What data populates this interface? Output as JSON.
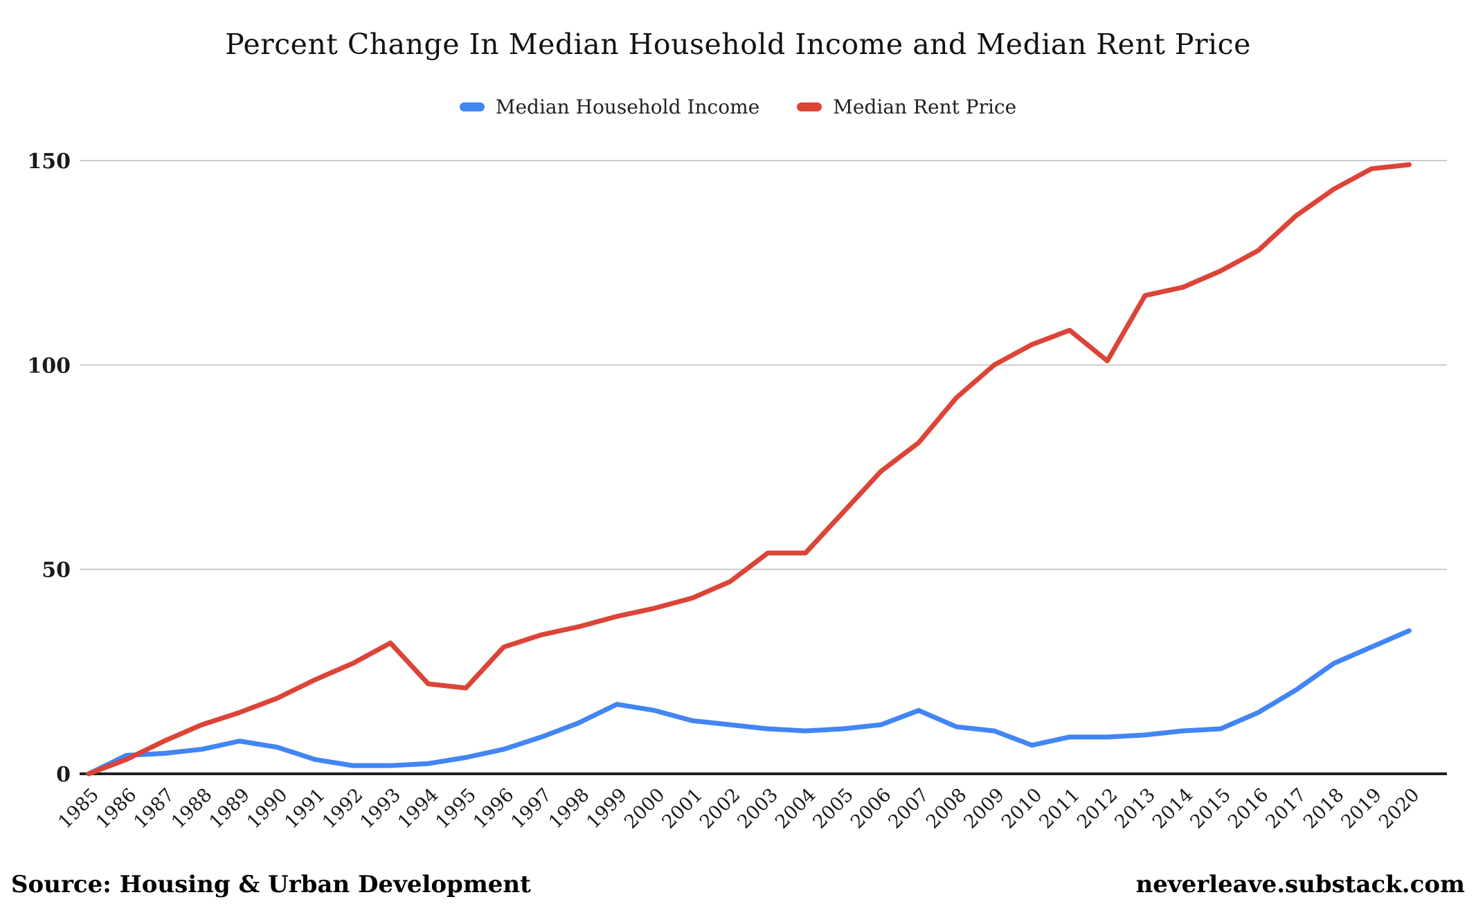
{
  "title": "Percent Change In Median Household Income and Median Rent Price",
  "legend": [
    {
      "label": "Median Household Income",
      "color": "#4285F4"
    },
    {
      "label": "Median Rent Price",
      "color": "#DC4437"
    }
  ],
  "footer": {
    "source": "Source: Housing & Urban Development",
    "site": "neverleave.substack.com"
  },
  "colors": {
    "income_line": "#4285F4",
    "rent_line": "#DC4437",
    "gridline": "#cccccc",
    "axis_baseline": "#212121",
    "tick_text": "#1a1a1a"
  },
  "chart_data": {
    "type": "line",
    "title": "Percent Change In Median Household Income and Median Rent Price",
    "xlabel": "",
    "ylabel": "",
    "x": [
      1985,
      1986,
      1987,
      1988,
      1989,
      1990,
      1991,
      1992,
      1993,
      1994,
      1995,
      1996,
      1997,
      1998,
      1999,
      2000,
      2001,
      2002,
      2003,
      2004,
      2005,
      2006,
      2007,
      2008,
      2009,
      2010,
      2011,
      2012,
      2013,
      2014,
      2015,
      2016,
      2017,
      2018,
      2019,
      2020
    ],
    "series": [
      {
        "name": "Median Household Income",
        "color": "#4285F4",
        "values": [
          0,
          4.5,
          5,
          6,
          8,
          6.5,
          3.5,
          2,
          2,
          2.5,
          4,
          6,
          9,
          12.5,
          17,
          15.5,
          13,
          12,
          11,
          10.5,
          11,
          12,
          15.5,
          11.5,
          10.5,
          7,
          9,
          9,
          9.5,
          10.5,
          11,
          15,
          20.5,
          27,
          31,
          35
        ]
      },
      {
        "name": "Median Rent Price",
        "color": "#DC4437",
        "values": [
          0,
          3.5,
          8,
          12,
          15,
          18.5,
          23,
          27,
          32,
          22,
          21,
          31,
          34,
          36,
          38.5,
          40.5,
          43,
          47,
          54,
          54,
          64,
          74,
          81,
          92,
          100,
          105,
          108.5,
          101,
          117,
          119,
          123,
          128,
          136.5,
          143,
          148,
          149
        ]
      }
    ],
    "ylim": [
      0,
      150
    ],
    "yticks": [
      0,
      50,
      100,
      150
    ],
    "grid": true,
    "legend_position": "top"
  }
}
